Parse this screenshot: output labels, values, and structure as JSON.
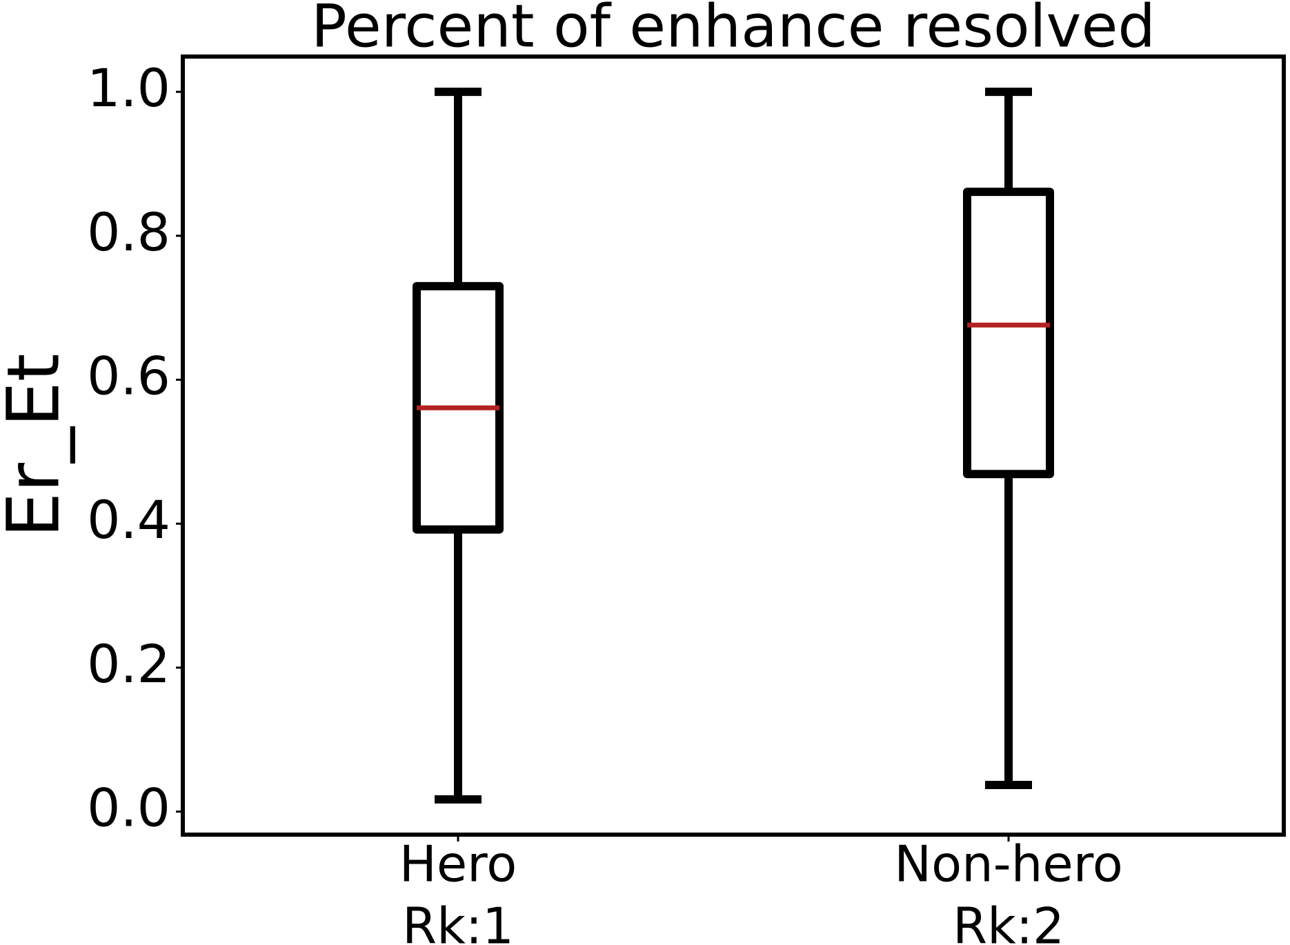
{
  "chart_data": {
    "type": "box",
    "title": "Percent of enhance resolved",
    "y_label": "Er_Et",
    "categories": [
      [
        "Hero",
        "Rk:1"
      ],
      [
        "Non-hero",
        "Rk:2"
      ]
    ],
    "boxes": [
      {
        "whislo": 0.017,
        "q1": 0.392,
        "med": 0.561,
        "q3": 0.73,
        "whishi": 1.0
      },
      {
        "whislo": 0.037,
        "q1": 0.469,
        "med": 0.676,
        "q3": 0.861,
        "whishi": 1.0
      }
    ],
    "box_color": "#000000",
    "median_color": "#b22222",
    "ylim": [
      -0.032,
      1.049
    ],
    "yticks": [
      {
        "value": 0,
        "label": "0.0"
      },
      {
        "value": 0.2,
        "label": "0.2"
      },
      {
        "value": 0.4,
        "label": "0.4"
      },
      {
        "value": 0.6,
        "label": "0.6"
      },
      {
        "value": 0.8,
        "label": "0.8"
      },
      {
        "value": 1,
        "label": "1.0"
      }
    ],
    "grid": false
  }
}
